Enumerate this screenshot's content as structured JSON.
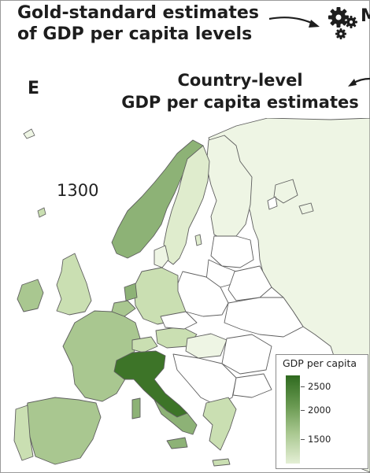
{
  "header": {
    "title_line1": "Gold-standard estimates",
    "title_line2": "of GDP per capita levels",
    "trailing_letter": "M"
  },
  "panel": {
    "letter": "E",
    "subtitle_line1": "Country-level",
    "subtitle_line2": "GDP per capita estimates"
  },
  "map": {
    "year": "1300",
    "region": "Europe",
    "highlight_country": "Italy",
    "colors": {
      "sea": "#ffffff",
      "border": "#5e5e5e",
      "very_light": "#eef5e4",
      "light": "#dfeccd",
      "mid_light": "#cadfb2",
      "mid": "#a9c790",
      "mid_dark": "#8db276",
      "dark": "#3d7428"
    }
  },
  "legend": {
    "title": "GDP per capita",
    "labels": [
      "2500",
      "2000",
      "1500"
    ],
    "values": [
      2500,
      2000,
      1500
    ],
    "color_high": "#2f6a1f",
    "color_low": "#e4efd5"
  }
}
